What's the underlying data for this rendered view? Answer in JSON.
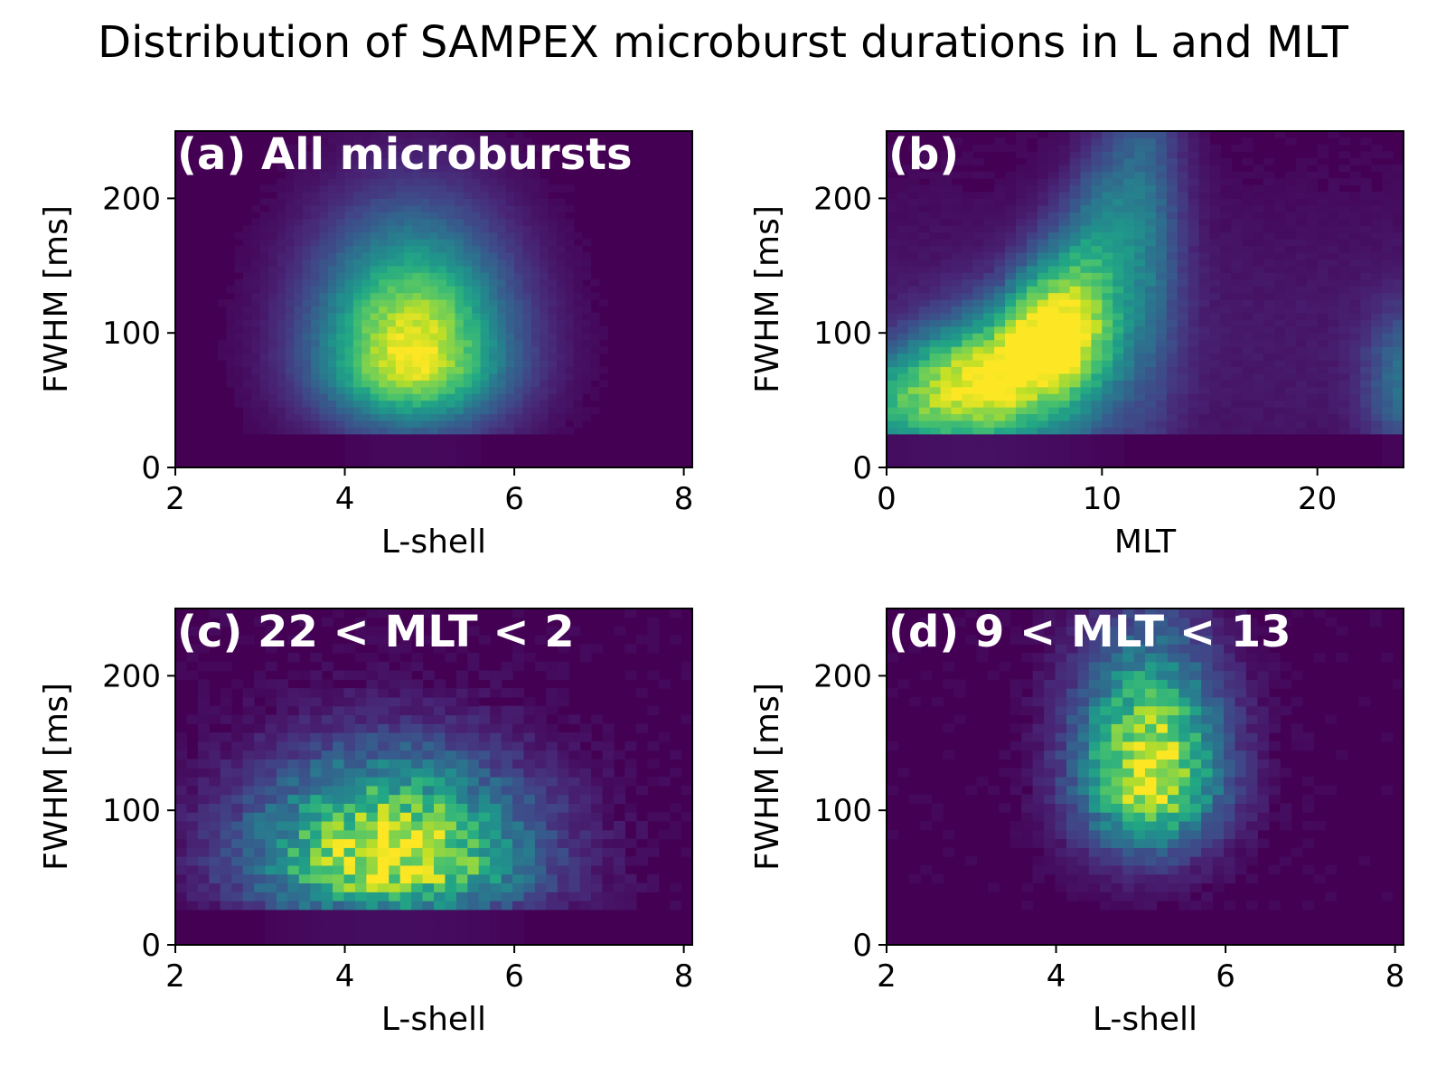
{
  "figure": {
    "title": "Distribution of SAMPEX microburst durations in L and MLT"
  },
  "colors": {
    "colormap": "viridis",
    "background": "#ffffff",
    "panel_title_text": "#ffffff"
  },
  "chart_data": [
    {
      "type": "heatmap",
      "panel": "a",
      "title": "(a) All microbursts",
      "xlabel": "L-shell",
      "ylabel": "FWHM [ms]",
      "xlim": [
        2,
        8.1
      ],
      "ylim": [
        0,
        250
      ],
      "xticks": [
        "2",
        "4",
        "6",
        "8"
      ],
      "yticks": [
        "0",
        "100",
        "200"
      ],
      "bins": {
        "nx": 61,
        "ny": 50
      },
      "y_min_populated": 25,
      "peak": {
        "x": 4.8,
        "y": 82
      },
      "spread": {
        "x": 0.75,
        "y": 45
      },
      "relative_peak_intensity": 1.0,
      "noise": 0.03
    },
    {
      "type": "heatmap",
      "panel": "b",
      "title": "(b)",
      "xlabel": "MLT",
      "ylabel": "FWHM [ms]",
      "xlim": [
        0,
        24
      ],
      "ylim": [
        0,
        250
      ],
      "xticks": [
        "0",
        "10",
        "20"
      ],
      "yticks": [
        "0",
        "100",
        "200"
      ],
      "bins": {
        "nx": 48,
        "ny": 50
      },
      "y_min_populated": 25,
      "ridge": [
        {
          "x": 0,
          "y": 50
        },
        {
          "x": 5,
          "y": 65
        },
        {
          "x": 8,
          "y": 95
        },
        {
          "x": 10,
          "y": 130
        },
        {
          "x": 12,
          "y": 170
        }
      ],
      "peak": {
        "x": 5,
        "y": 65
      },
      "relative_peak_intensity": 1.0,
      "noise": 0.04
    },
    {
      "type": "heatmap",
      "panel": "c",
      "title": "(c) 22 < MLT < 2",
      "xlabel": "L-shell",
      "ylabel": "FWHM [ms]",
      "xlim": [
        2,
        8.1
      ],
      "ylim": [
        0,
        250
      ],
      "xticks": [
        "2",
        "4",
        "6",
        "8"
      ],
      "yticks": [
        "0",
        "100",
        "200"
      ],
      "bins": {
        "nx": 46,
        "ny": 38
      },
      "y_min_populated": 25,
      "peak": {
        "x": 4.55,
        "y": 62
      },
      "spread": {
        "x": 1.05,
        "y": 35
      },
      "relative_peak_intensity": 1.0,
      "noise": 0.12
    },
    {
      "type": "heatmap",
      "panel": "d",
      "title": "(d) 9 < MLT < 13",
      "xlabel": "L-shell",
      "ylabel": "FWHM [ms]",
      "xlim": [
        2,
        8.1
      ],
      "ylim": [
        0,
        250
      ],
      "xticks": [
        "2",
        "4",
        "6",
        "8"
      ],
      "yticks": [
        "0",
        "100",
        "200"
      ],
      "bins": {
        "nx": 46,
        "ny": 38
      },
      "y_min_populated": 25,
      "peak": {
        "x": 5.1,
        "y": 125
      },
      "spread": {
        "x": 0.55,
        "y": 45
      },
      "relative_peak_intensity": 1.0,
      "noise": 0.1
    }
  ]
}
